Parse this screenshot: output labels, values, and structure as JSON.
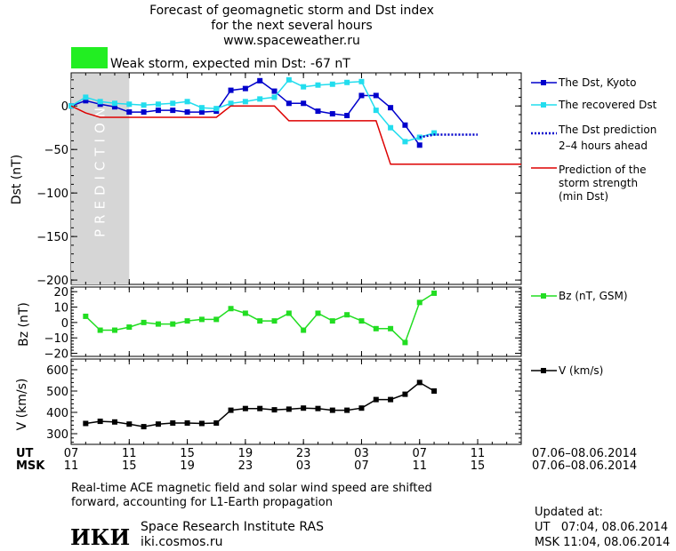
{
  "header": {
    "title_line1": "Forecast of geomagnetic storm and Dst index",
    "title_line2": "for the next several hours",
    "title_line3": "www.spaceweather.ru",
    "status_text": "Weak storm, expected min Dst: -67 nT",
    "status_color": "#22ee22"
  },
  "prediction_label": "PREDICTION",
  "chart_data": [
    {
      "type": "line",
      "ylabel": "Dst (nT)",
      "ylim": [
        -205,
        38
      ],
      "yticks": [
        0,
        -50,
        -100,
        -150,
        -200
      ],
      "ytick_labels": [
        "0",
        "−50",
        "−100",
        "−150",
        "−200"
      ],
      "prediction_region": [
        7,
        11
      ],
      "series": [
        {
          "name": "The Dst, Kyoto",
          "color": "#0000cc",
          "marker": "square",
          "x": [
            7,
            8,
            9,
            10,
            11,
            12,
            13,
            14,
            15,
            16,
            17,
            18,
            19,
            20,
            21,
            22,
            23,
            24,
            25,
            26,
            27,
            28,
            29,
            30,
            31
          ],
          "y": [
            0,
            6,
            2,
            -1,
            -7,
            -7,
            -5,
            -5,
            -7,
            -7,
            -6,
            18,
            20,
            29,
            17,
            3,
            3,
            -6,
            -9,
            -11,
            12,
            12,
            -2,
            -22,
            -45
          ]
        },
        {
          "name": "The recovered Dst",
          "color": "#22ddee",
          "marker": "square",
          "x": [
            7,
            8,
            9,
            10,
            11,
            12,
            13,
            14,
            15,
            16,
            17,
            18,
            19,
            20,
            21,
            22,
            23,
            24,
            25,
            26,
            27,
            28,
            29,
            30,
            31,
            32
          ],
          "y": [
            0,
            10,
            5,
            3,
            2,
            1,
            2,
            3,
            5,
            -2,
            -3,
            3,
            5,
            8,
            10,
            30,
            22,
            24,
            25,
            27,
            28,
            -5,
            -25,
            -41,
            -36,
            -31
          ]
        },
        {
          "name": "The Dst prediction",
          "name_line2": "2–4 hours ahead",
          "color": "#0000cc",
          "style": "dotted",
          "x": [
            31,
            32,
            33,
            34,
            35
          ],
          "y": [
            -36,
            -33,
            -33,
            -33,
            -33
          ]
        },
        {
          "name": "Prediction of the",
          "name_line2": "storm strength",
          "name_line3": "(min Dst)",
          "color": "#dd0000",
          "style": "step",
          "x": [
            7,
            8,
            9,
            17,
            18,
            21,
            22,
            28,
            29,
            38
          ],
          "y": [
            0,
            -8,
            -13,
            -13,
            0,
            0,
            -17,
            -17,
            -67,
            -67
          ]
        }
      ]
    },
    {
      "type": "line",
      "ylabel": "Bz (nT)",
      "ylim": [
        -22,
        23
      ],
      "yticks": [
        20,
        10,
        0,
        -10,
        -20
      ],
      "ytick_labels": [
        "20",
        "10",
        "0",
        "−10",
        "−20"
      ],
      "series": [
        {
          "name": "Bz (nT, GSM)",
          "color": "#22dd22",
          "marker": "square",
          "x": [
            8,
            9,
            10,
            11,
            12,
            13,
            14,
            15,
            16,
            17,
            18,
            19,
            20,
            21,
            22,
            23,
            24,
            25,
            26,
            27,
            28,
            29,
            30,
            31,
            32
          ],
          "y": [
            4,
            -5,
            -5,
            -3,
            0,
            -1,
            -1,
            1,
            2,
            2,
            9,
            6,
            1,
            1,
            6,
            -5,
            6,
            1,
            5,
            1,
            -4,
            -4,
            -13,
            13,
            19
          ]
        }
      ]
    },
    {
      "type": "line",
      "ylabel": "V (km/s)",
      "ylim": [
        250,
        650
      ],
      "yticks": [
        600,
        500,
        400,
        300
      ],
      "ytick_labels": [
        "600",
        "500",
        "400",
        "300"
      ],
      "series": [
        {
          "name": "V (km/s)",
          "color": "#000000",
          "marker": "square",
          "x": [
            8,
            9,
            10,
            11,
            12,
            13,
            14,
            15,
            16,
            17,
            18,
            19,
            20,
            21,
            22,
            23,
            24,
            25,
            26,
            27,
            28,
            29,
            30,
            31,
            32
          ],
          "y": [
            348,
            358,
            355,
            345,
            333,
            345,
            350,
            350,
            348,
            350,
            410,
            418,
            418,
            412,
            415,
            420,
            418,
            410,
            410,
            420,
            460,
            460,
            485,
            540,
            500
          ]
        }
      ]
    }
  ],
  "xaxis": {
    "range": [
      7,
      38
    ],
    "ticks": [
      7,
      11,
      15,
      19,
      23,
      27,
      31,
      35,
      38
    ],
    "ut_label": "UT",
    "msk_label": "MSK",
    "ut_ticks": [
      "07",
      "11",
      "15",
      "19",
      "23",
      "03",
      "07",
      "11"
    ],
    "msk_ticks": [
      "11",
      "15",
      "19",
      "23",
      "03",
      "07",
      "11",
      "15"
    ],
    "ut_date_range": "07.06–08.06.2014",
    "msk_date_range": "07.06–08.06.2014"
  },
  "footer": {
    "note_line1": "Real-time ACE magnetic field and solar wind speed are shifted",
    "note_line2": "forward, accounting for L1-Earth propagation",
    "logo_text": "ИКИ",
    "institute": "Space Research Institute RAS",
    "site": "iki.cosmos.ru",
    "updated_label": "Updated at:",
    "updated_ut": "UT   07:04, 08.06.2014",
    "updated_msk": "MSK 11:04, 08.06.2014"
  }
}
